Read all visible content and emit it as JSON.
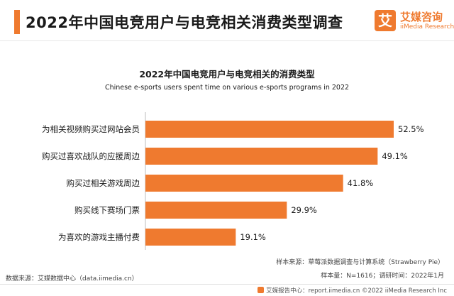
{
  "header": {
    "title": "2022年中国电竞用户与电竞相关消费类型调查"
  },
  "logo": {
    "mark": "艾",
    "name_cn": "艾媒咨询",
    "name_en": "iiMedia Research"
  },
  "colors": {
    "accent": "#ef7a2f",
    "bar": "#ef7a2f"
  },
  "chart_data": {
    "type": "bar",
    "orientation": "horizontal",
    "title": "2022年中国电竞用户与电竞相关的消费类型",
    "subtitle": "Chinese e-sports users spent time on various e-sports programs in 2022",
    "categories": [
      "为相关视频购买过网站会员",
      "购买过喜欢战队的应援周边",
      "购买过相关游戏周边",
      "购买线下赛场门票",
      "为喜欢的游戏主播付费"
    ],
    "values": [
      52.5,
      49.1,
      41.8,
      29.9,
      19.1
    ],
    "value_labels": [
      "52.5%",
      "49.1%",
      "41.8%",
      "29.9%",
      "19.1%"
    ],
    "unit": "%",
    "xlim": [
      0,
      60
    ],
    "grid": false,
    "legend": "none"
  },
  "notes": {
    "sample_source": "样本来源：草莓派数据调查与计算系统（Strawberry Pie）",
    "sample_info": "样本量：N=1616；调研时间：2022年1月",
    "data_source": "数据来源：艾媒数据中心（data.iimedia.cn）"
  },
  "footer": {
    "text": "艾媒报告中心：report.iimedia.cn  ©2022  iiMedia Research  Inc"
  }
}
